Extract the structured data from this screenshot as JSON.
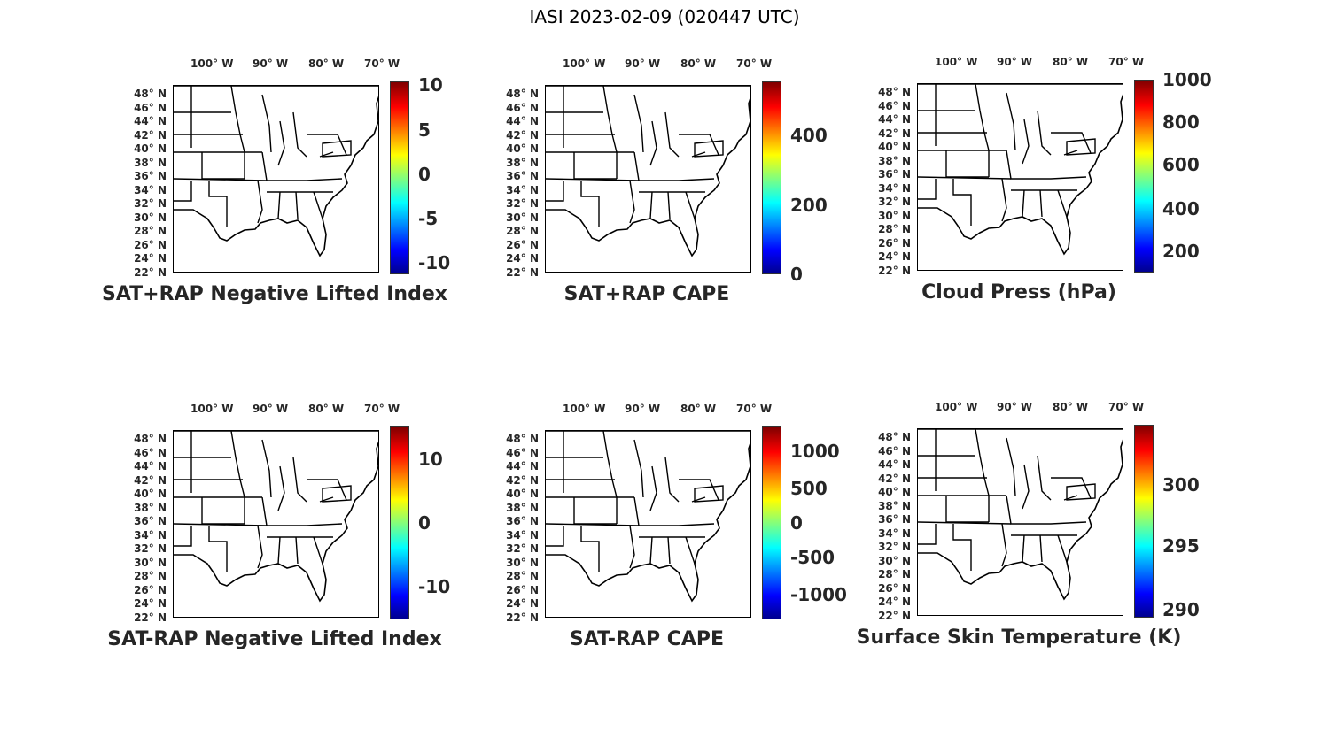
{
  "title": "IASI 2023-02-09 (020447 UTC)",
  "lon_labels": [
    "100° W",
    "90° W",
    "80° W",
    "70° W"
  ],
  "lat_labels": [
    "48° N",
    "46° N",
    "44° N",
    "42° N",
    "40° N",
    "38° N",
    "36° N",
    "34° N",
    "32° N",
    "30° N",
    "28° N",
    "26° N",
    "24° N",
    "22° N"
  ],
  "colormap": "jet",
  "panels": [
    {
      "title": "SAT+RAP Negative Lifted Index",
      "colorbar_ticks": [
        "10",
        "5",
        "0",
        "-5",
        "-10"
      ]
    },
    {
      "title": "SAT+RAP CAPE",
      "colorbar_ticks": [
        "400",
        "200",
        "0"
      ]
    },
    {
      "title": "Cloud Press (hPa)",
      "colorbar_ticks": [
        "1000",
        "800",
        "600",
        "400",
        "200"
      ]
    },
    {
      "title": "SAT-RAP Negative Lifted Index",
      "colorbar_ticks": [
        "10",
        "0",
        "-10"
      ]
    },
    {
      "title": "SAT-RAP CAPE",
      "colorbar_ticks": [
        "1000",
        "500",
        "0",
        "-500",
        "-1000"
      ]
    },
    {
      "title": "Surface Skin Temperature (K)",
      "colorbar_ticks": [
        "300",
        "295",
        "290"
      ]
    }
  ]
}
